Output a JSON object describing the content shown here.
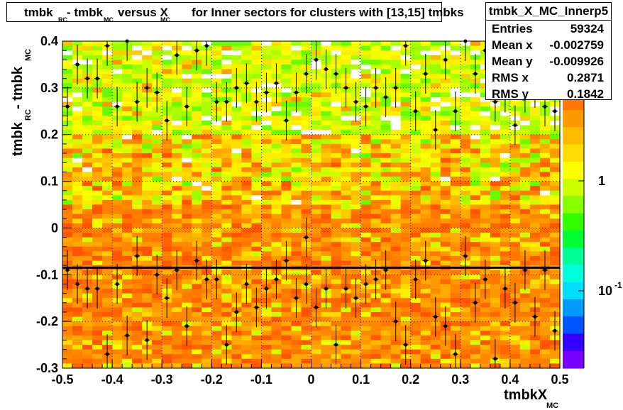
{
  "title": {
    "t1": "tmbk",
    "s1": "RC",
    "t2": " - tmbk",
    "s2": "MC",
    "t3": " versus X",
    "s3": "MC",
    "t4": " for Inner sectors for clusters with [13,15] tmbks"
  },
  "stats": {
    "name": "tmbk_X_MC_Innerp5",
    "rows": [
      {
        "label": "Entries",
        "value": "59324"
      },
      {
        "label": "Mean x",
        "value": "-0.002759"
      },
      {
        "label": "Mean y",
        "value": "-0.009926"
      },
      {
        "label": "RMS x",
        "value": "0.2871"
      },
      {
        "label": "RMS y",
        "value": "0.1842"
      }
    ]
  },
  "axes": {
    "xlabel_main": "tmbkX",
    "xlabel_sub": "MC",
    "ylabel_a": "tmbk",
    "ylabel_a_sub": "RC",
    "ylabel_b": " - tmbk",
    "ylabel_b_sub": "MC",
    "xticks": [
      "-0.5",
      "-0.4",
      "-0.3",
      "-0.2",
      "-0.1",
      "0",
      "0.1",
      "0.2",
      "0.3",
      "0.4",
      "0.5"
    ],
    "yticks": [
      "0.4",
      "0.3",
      "0.2",
      "0.1",
      "0",
      "-0.1",
      "-0.2",
      "-0.3"
    ],
    "zticks": [
      {
        "main": "1",
        "exp": ""
      },
      {
        "main": "10",
        "exp": "-1"
      }
    ]
  },
  "colors": {
    "frame": "#000000",
    "grid": "#000000",
    "marker": "#000000"
  },
  "chart_data": {
    "type": "heatmap",
    "title": "tmbk_RC - tmbk_MC versus X_MC for Inner sectors for clusters with [13,15] tmbks",
    "xlabel": "tmbkX_MC",
    "ylabel": "tmbk_RC - tmbk_MC",
    "xlim": [
      -0.5,
      0.5
    ],
    "ylim": [
      -0.3,
      0.4
    ],
    "z_scale": "log",
    "grid": true,
    "profile_points": [
      {
        "x": -0.49,
        "y": 0.26
      },
      {
        "x": -0.47,
        "y": 0.35
      },
      {
        "x": -0.45,
        "y": 0.32
      },
      {
        "x": -0.43,
        "y": 0.32
      },
      {
        "x": -0.41,
        "y": 0.39
      },
      {
        "x": -0.39,
        "y": 0.26
      },
      {
        "x": -0.37,
        "y": 0.4
      },
      {
        "x": -0.35,
        "y": 0.27
      },
      {
        "x": -0.33,
        "y": 0.3
      },
      {
        "x": -0.31,
        "y": 0.29
      },
      {
        "x": -0.29,
        "y": 0.23
      },
      {
        "x": -0.27,
        "y": 0.37
      },
      {
        "x": -0.25,
        "y": 0.26
      },
      {
        "x": -0.23,
        "y": 0.38
      },
      {
        "x": -0.21,
        "y": 0.39
      },
      {
        "x": -0.19,
        "y": 0.27
      },
      {
        "x": -0.17,
        "y": 0.27
      },
      {
        "x": -0.15,
        "y": 0.3
      },
      {
        "x": -0.13,
        "y": 0.31
      },
      {
        "x": -0.11,
        "y": 0.27
      },
      {
        "x": -0.09,
        "y": 0.29
      },
      {
        "x": -0.07,
        "y": 0.31
      },
      {
        "x": -0.05,
        "y": 0.23
      },
      {
        "x": -0.03,
        "y": 0.29
      },
      {
        "x": -0.01,
        "y": 0.33
      },
      {
        "x": 0.01,
        "y": 0.36
      },
      {
        "x": 0.03,
        "y": 0.34
      },
      {
        "x": 0.05,
        "y": 0.33
      },
      {
        "x": 0.07,
        "y": 0.3
      },
      {
        "x": 0.09,
        "y": 0.27
      },
      {
        "x": 0.11,
        "y": 0.26
      },
      {
        "x": 0.13,
        "y": 0.3
      },
      {
        "x": 0.15,
        "y": 0.28
      },
      {
        "x": 0.17,
        "y": 0.3
      },
      {
        "x": 0.19,
        "y": 0.39
      },
      {
        "x": 0.21,
        "y": 0.25
      },
      {
        "x": 0.23,
        "y": 0.33
      },
      {
        "x": 0.25,
        "y": 0.21
      },
      {
        "x": 0.27,
        "y": 0.36
      },
      {
        "x": 0.29,
        "y": 0.25
      },
      {
        "x": 0.31,
        "y": 0.4
      },
      {
        "x": 0.33,
        "y": 0.33
      },
      {
        "x": 0.35,
        "y": 0.38
      },
      {
        "x": 0.37,
        "y": 0.27
      },
      {
        "x": 0.39,
        "y": 0.29
      },
      {
        "x": 0.41,
        "y": 0.22
      },
      {
        "x": 0.43,
        "y": 0.29
      },
      {
        "x": 0.45,
        "y": 0.3
      },
      {
        "x": 0.47,
        "y": 0.26
      },
      {
        "x": 0.49,
        "y": 0.25
      },
      {
        "x": -0.49,
        "y": -0.09
      },
      {
        "x": -0.47,
        "y": -0.12
      },
      {
        "x": -0.45,
        "y": -0.13
      },
      {
        "x": -0.43,
        "y": -0.13
      },
      {
        "x": -0.41,
        "y": -0.27
      },
      {
        "x": -0.39,
        "y": -0.12
      },
      {
        "x": -0.37,
        "y": -0.23
      },
      {
        "x": -0.35,
        "y": -0.06
      },
      {
        "x": -0.33,
        "y": -0.24
      },
      {
        "x": -0.31,
        "y": -0.1
      },
      {
        "x": -0.29,
        "y": -0.15
      },
      {
        "x": -0.27,
        "y": -0.09
      },
      {
        "x": -0.25,
        "y": -0.21
      },
      {
        "x": -0.23,
        "y": -0.07
      },
      {
        "x": -0.21,
        "y": -0.11
      },
      {
        "x": -0.19,
        "y": -0.11
      },
      {
        "x": -0.17,
        "y": -0.25
      },
      {
        "x": -0.15,
        "y": -0.18
      },
      {
        "x": -0.13,
        "y": -0.12
      },
      {
        "x": -0.11,
        "y": -0.17
      },
      {
        "x": -0.09,
        "y": -0.13
      },
      {
        "x": -0.07,
        "y": -0.11
      },
      {
        "x": -0.05,
        "y": -0.07
      },
      {
        "x": -0.03,
        "y": -0.15
      },
      {
        "x": -0.01,
        "y": -0.12
      },
      {
        "x": 0.01,
        "y": -0.17
      },
      {
        "x": 0.03,
        "y": -0.13
      },
      {
        "x": 0.05,
        "y": -0.25
      },
      {
        "x": 0.07,
        "y": -0.13
      },
      {
        "x": 0.09,
        "y": -0.15
      },
      {
        "x": 0.11,
        "y": -0.12
      },
      {
        "x": 0.13,
        "y": -0.11
      },
      {
        "x": 0.15,
        "y": -0.09
      },
      {
        "x": 0.17,
        "y": -0.2
      },
      {
        "x": 0.19,
        "y": -0.25
      },
      {
        "x": 0.21,
        "y": -0.11
      },
      {
        "x": 0.23,
        "y": -0.07
      },
      {
        "x": 0.25,
        "y": -0.19
      },
      {
        "x": 0.27,
        "y": -0.21
      },
      {
        "x": 0.29,
        "y": -0.27
      },
      {
        "x": 0.31,
        "y": -0.06
      },
      {
        "x": 0.33,
        "y": -0.16
      },
      {
        "x": 0.35,
        "y": -0.11
      },
      {
        "x": 0.37,
        "y": -0.28
      },
      {
        "x": 0.39,
        "y": -0.13
      },
      {
        "x": 0.41,
        "y": -0.16
      },
      {
        "x": 0.43,
        "y": -0.09
      },
      {
        "x": -0.01,
        "y": -0.02
      },
      {
        "x": 0.45,
        "y": -0.19
      },
      {
        "x": 0.47,
        "y": -0.09
      },
      {
        "x": 0.49,
        "y": -0.22
      }
    ]
  }
}
